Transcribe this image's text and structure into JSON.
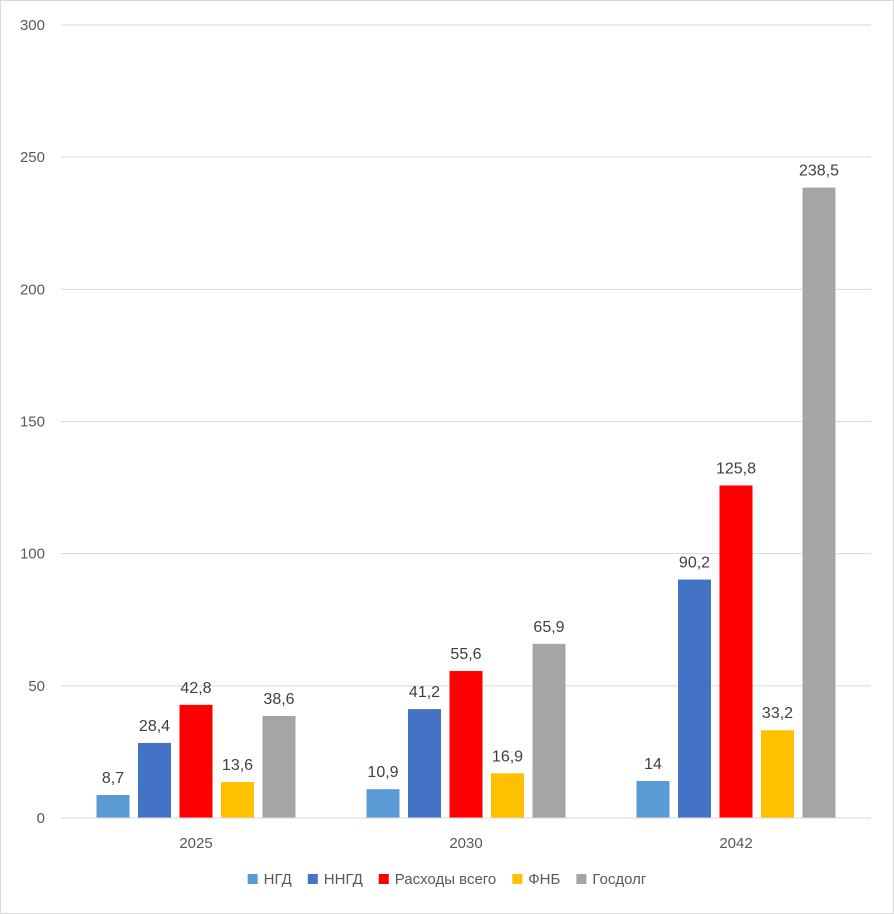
{
  "chart_data": {
    "type": "bar",
    "categories": [
      "2025",
      "2030",
      "2042"
    ],
    "series": [
      {
        "name": "НГД",
        "color": "#5b9bd5",
        "values": [
          8.7,
          10.9,
          14
        ]
      },
      {
        "name": "ННГД",
        "color": "#4472c4",
        "values": [
          28.4,
          41.2,
          90.2
        ]
      },
      {
        "name": "Расходы всего",
        "color": "#ff0000",
        "values": [
          42.8,
          55.6,
          125.8
        ]
      },
      {
        "name": "ФНБ",
        "color": "#ffc000",
        "values": [
          13.6,
          16.9,
          33.2
        ]
      },
      {
        "name": "Госдолг",
        "color": "#a5a5a5",
        "values": [
          38.6,
          65.9,
          238.5
        ]
      }
    ],
    "data_labels": [
      [
        "8,7",
        "10,9",
        "14"
      ],
      [
        "28,4",
        "41,2",
        "90,2"
      ],
      [
        "42,8",
        "55,6",
        "125,8"
      ],
      [
        "13,6",
        "16,9",
        "33,2"
      ],
      [
        "38,6",
        "65,9",
        "238,5"
      ]
    ],
    "y_ticks": [
      "0",
      "50",
      "100",
      "150",
      "200",
      "250",
      "300"
    ],
    "y_tick_values": [
      0,
      50,
      100,
      150,
      200,
      250,
      300
    ],
    "ylim": [
      0,
      300
    ],
    "grid": true,
    "legend_position": "bottom"
  }
}
